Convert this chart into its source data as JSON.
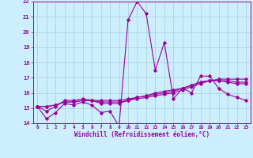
{
  "xlabel": "Windchill (Refroidissement éolien,°C)",
  "background_color": "#cceeff",
  "grid_color": "#aacccc",
  "line_color": "#990099",
  "xlim": [
    -0.5,
    23.5
  ],
  "ylim": [
    14,
    22
  ],
  "yticks": [
    14,
    15,
    16,
    17,
    18,
    19,
    20,
    21,
    22
  ],
  "xticks": [
    0,
    1,
    2,
    3,
    4,
    5,
    6,
    7,
    8,
    9,
    10,
    11,
    12,
    13,
    14,
    15,
    16,
    17,
    18,
    19,
    20,
    21,
    22,
    23
  ],
  "series1": [
    15.1,
    14.3,
    14.7,
    15.3,
    15.2,
    15.4,
    15.2,
    14.7,
    14.8,
    13.8,
    20.8,
    22.0,
    21.2,
    17.5,
    19.3,
    15.6,
    16.3,
    16.0,
    17.1,
    17.1,
    16.3,
    15.9,
    15.7,
    15.5
  ],
  "series2": [
    15.1,
    14.8,
    15.1,
    15.5,
    15.5,
    15.6,
    15.5,
    15.3,
    15.3,
    15.3,
    15.5,
    15.7,
    15.8,
    16.0,
    16.1,
    16.2,
    16.3,
    16.5,
    16.7,
    16.8,
    16.9,
    16.9,
    16.9,
    16.9
  ],
  "series3": [
    15.1,
    15.1,
    15.2,
    15.4,
    15.4,
    15.5,
    15.5,
    15.5,
    15.5,
    15.5,
    15.6,
    15.7,
    15.8,
    15.9,
    16.0,
    16.1,
    16.3,
    16.5,
    16.7,
    16.8,
    16.8,
    16.8,
    16.7,
    16.7
  ],
  "series4": [
    15.1,
    15.1,
    15.2,
    15.4,
    15.4,
    15.5,
    15.5,
    15.4,
    15.4,
    15.4,
    15.5,
    15.6,
    15.7,
    15.8,
    15.9,
    16.0,
    16.2,
    16.4,
    16.6,
    16.8,
    16.8,
    16.7,
    16.6,
    16.6
  ]
}
